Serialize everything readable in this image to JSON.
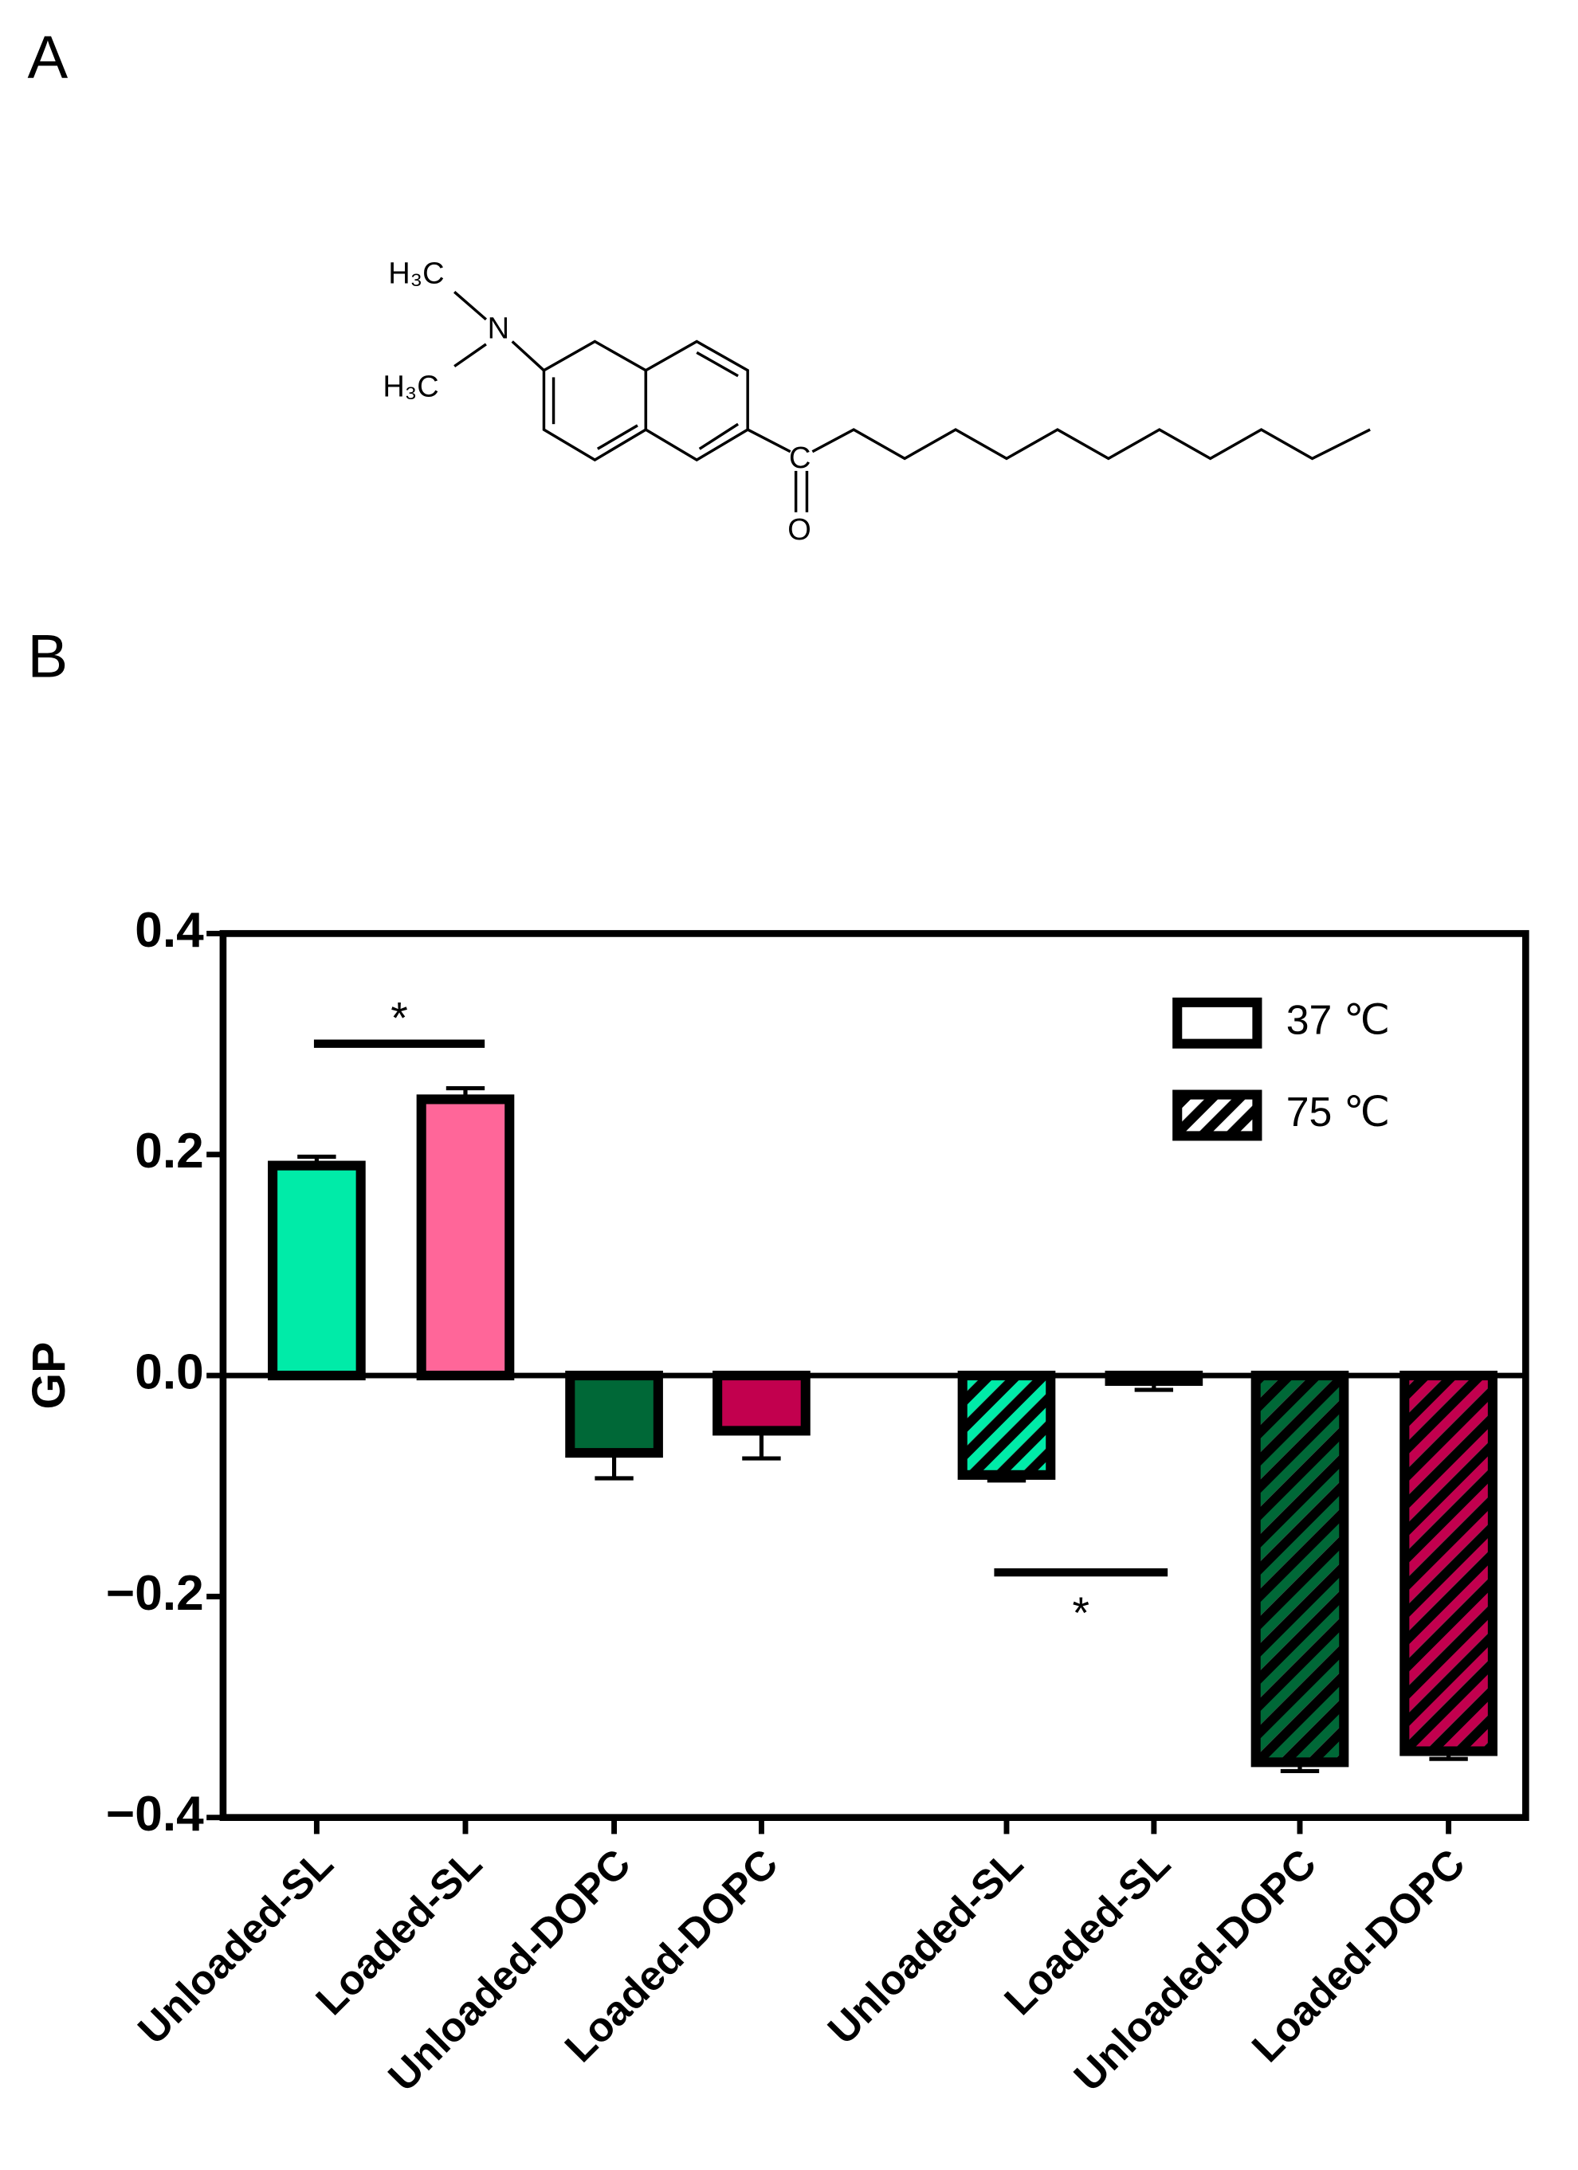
{
  "panels": [
    "A",
    "B"
  ],
  "structure": {
    "labels": [
      "H₃C",
      "N",
      "H₃C",
      "C",
      "O"
    ]
  },
  "chart_data": {
    "type": "bar",
    "ylabel": "GP",
    "categories": [
      "Unloaded-SL",
      "Loaded-SL",
      "Unloaded-DOPC",
      "Loaded-DOPC",
      "Unloaded-SL",
      "Loaded-SL",
      "Unloaded-DOPC",
      "Loaded-DOPC"
    ],
    "values": [
      0.19,
      0.25,
      -0.07,
      -0.05,
      -0.09,
      -0.005,
      -0.35,
      -0.34
    ],
    "errors": [
      0.008,
      0.01,
      0.023,
      0.025,
      0.005,
      0.008,
      0.008,
      0.007
    ],
    "colors": [
      "#00eba8",
      "#ff6699",
      "#006837",
      "#c2004e",
      "#00eba8",
      "#ff6699",
      "#006837",
      "#c2004e"
    ],
    "hatched": [
      false,
      false,
      false,
      false,
      true,
      true,
      true,
      true
    ],
    "legend": [
      {
        "label": "37 ℃",
        "hatched": false
      },
      {
        "label": "75 ℃",
        "hatched": true
      }
    ],
    "annotations": [
      "*",
      "*"
    ],
    "ylim": [
      -0.4,
      0.4
    ],
    "yticks": [
      {
        "value": -0.4,
        "label": "−0.4"
      },
      {
        "value": -0.2,
        "label": "−0.2"
      },
      {
        "value": 0,
        "label": "0.0"
      },
      0.2,
      0.4
    ]
  }
}
